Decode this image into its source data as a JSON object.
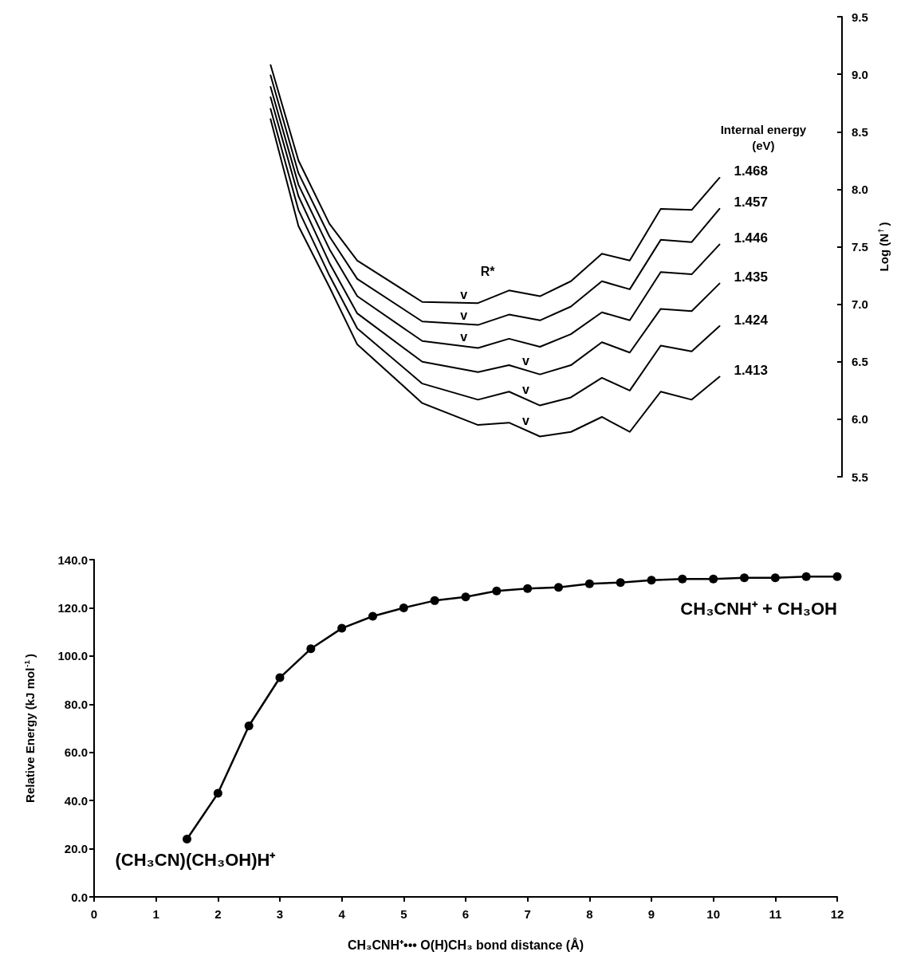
{
  "chart_data": [
    {
      "type": "line",
      "ylabel": "Log (N$^{†}$)",
      "legend_title": "Internal energy\n(eV)",
      "tick_labels": "y",
      "marker": "none",
      "x": [
        2.85,
        3.3,
        3.8,
        4.25,
        5.3,
        6.2,
        6.7,
        7.2,
        7.7,
        8.2,
        8.65,
        9.15,
        9.65,
        10.1
      ],
      "xlim": [
        0,
        12
      ],
      "ylim": [
        5.5,
        9.5
      ],
      "yticks": [
        5.5,
        {
          "value": 6,
          "label": "6.0"
        },
        6.5,
        {
          "value": 7,
          "label": "7.0"
        },
        7.5,
        {
          "value": 8,
          "label": "8.0"
        },
        8.5,
        {
          "value": 9,
          "label": "9.0"
        },
        9.5
      ],
      "series": [
        {
          "name": "1.413",
          "color": "#000000",
          "values": [
            8.61,
            7.68,
            7.15,
            6.65,
            6.14,
            5.95,
            5.97,
            5.85,
            5.89,
            6.02,
            5.89,
            6.24,
            6.17,
            6.37
          ]
        },
        {
          "name": "1.424",
          "color": "#000000",
          "values": [
            8.7,
            7.82,
            7.25,
            6.79,
            6.31,
            6.17,
            6.24,
            6.12,
            6.19,
            6.36,
            6.25,
            6.64,
            6.59,
            6.81
          ]
        },
        {
          "name": "1.435",
          "color": "#000000",
          "values": [
            8.8,
            7.94,
            7.36,
            6.92,
            6.5,
            6.41,
            6.47,
            6.39,
            6.47,
            6.67,
            6.58,
            6.96,
            6.94,
            7.18
          ]
        },
        {
          "name": "1.446",
          "color": "#000000",
          "values": [
            8.89,
            8.04,
            7.48,
            7.07,
            6.68,
            6.62,
            6.7,
            6.63,
            6.74,
            6.93,
            6.86,
            7.28,
            7.26,
            7.52
          ]
        },
        {
          "name": "1.457",
          "color": "#000000",
          "values": [
            8.99,
            8.14,
            7.59,
            7.22,
            6.85,
            6.82,
            6.91,
            6.86,
            6.98,
            7.2,
            7.13,
            7.56,
            7.54,
            7.83
          ]
        },
        {
          "name": "1.468",
          "color": "#000000",
          "values": [
            9.08,
            8.25,
            7.7,
            7.38,
            7.02,
            7.01,
            7.12,
            7.07,
            7.2,
            7.44,
            7.38,
            7.83,
            7.82,
            8.1
          ]
        }
      ],
      "annotations": [
        "R*",
        {
          "text": "v",
          "x": 5.97,
          "y": 7.01
        },
        {
          "text": "v",
          "x": 5.97,
          "y": 6.83
        },
        {
          "text": "v",
          "x": 5.97,
          "y": 6.64
        },
        {
          "text": "v",
          "x": 6.97,
          "y": 6.43
        },
        {
          "text": "v",
          "x": 6.97,
          "y": 6.18
        },
        {
          "text": "v",
          "x": 6.97,
          "y": 5.91
        }
      ]
    },
    {
      "type": "line",
      "xlabel": "CH₃CNH⁺••• O(H)CH₃ bond distance (Å)",
      "ylabel": "Relative Energy (kJ mol$^{-1}$)",
      "marker": "circle",
      "x": [
        1.5,
        2,
        2.5,
        3,
        3.5,
        4,
        4.5,
        5,
        5.5,
        6,
        6.5,
        7,
        7.5,
        8,
        8.5,
        9,
        9.5,
        10,
        10.5,
        11,
        11.5,
        12
      ],
      "xlim": [
        0,
        12
      ],
      "xticks": [
        0,
        1,
        2,
        3,
        4,
        5,
        6,
        7,
        8,
        9,
        10,
        11,
        12
      ],
      "ylim": [
        0,
        140
      ],
      "yticks": [
        {
          "value": 0,
          "label": "0.0"
        },
        {
          "value": 20,
          "label": "20.0"
        },
        {
          "value": 40,
          "label": "40.0"
        },
        {
          "value": 60,
          "label": "60.0"
        },
        {
          "value": 80,
          "label": "80.0"
        },
        {
          "value": 100,
          "label": "100.0"
        },
        {
          "value": 120,
          "label": "120.0"
        },
        {
          "value": 140,
          "label": "140.0"
        }
      ],
      "series": [
        {
          "color": "#000000",
          "values": [
            24,
            43,
            71,
            91,
            103,
            111.5,
            116.5,
            120,
            123,
            124.5,
            127,
            128,
            128.5,
            130,
            130.5,
            131.5,
            132,
            132,
            132.5,
            132.5,
            133,
            133
          ]
        }
      ],
      "annotations": [
        {
          "text": "(CH₃CN)(CH₃OH)H⁺",
          "x": 1.5,
          "y": 24
        },
        {
          "text": "CH₃CNH⁺ + CH₃OH",
          "x": 12,
          "y": 133
        }
      ]
    }
  ]
}
